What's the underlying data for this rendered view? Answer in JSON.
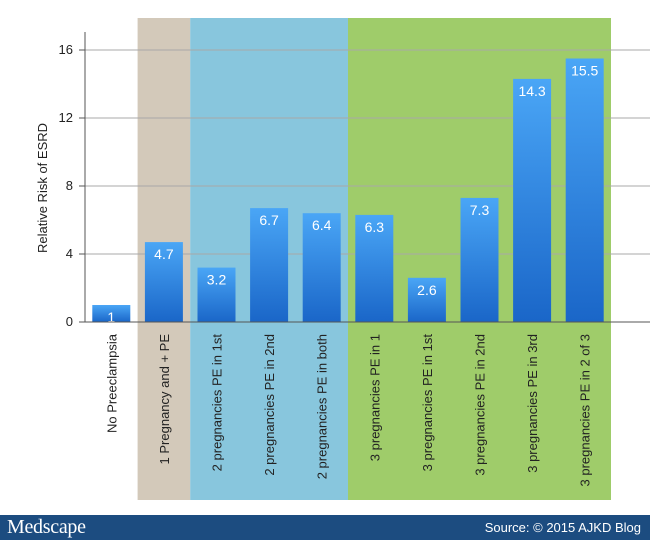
{
  "chart_data": {
    "type": "bar",
    "ylabel": "Relative Risk of ESRD",
    "ylim": [
      0,
      17
    ],
    "yticks": [
      0,
      4,
      8,
      12,
      16
    ],
    "grid": true,
    "categories": [
      "No Preeclampsia",
      "1 Pregnancy and + PE",
      "2 pregnancies PE in 1st",
      "2 pregnancies PE in 2nd",
      "2 pregnancies PE in both",
      "3 pregnancies PE in 1",
      "3 pregnancies PE in 1st",
      "3 pregnancies PE in 2nd",
      "3 pregnancies PE in 3rd",
      "3 pregnancies PE in 2 of 3"
    ],
    "values": [
      1,
      4.7,
      3.2,
      6.7,
      6.4,
      6.3,
      2.6,
      7.3,
      14.3,
      15.5
    ],
    "data_labels": [
      "1",
      "4.7",
      "3.2",
      "6.7",
      "6.4",
      "6.3",
      "2.6",
      "7.3",
      "14.3",
      "15.5"
    ],
    "bands": [
      {
        "from_index": 1,
        "to_index": 1,
        "color": "#d3c9ba"
      },
      {
        "from_index": 2,
        "to_index": 4,
        "color": "#88c6dd"
      },
      {
        "from_index": 5,
        "to_index": 9,
        "color": "#9fcc6a"
      }
    ],
    "bar_color_top": "#4aa6f6",
    "bar_color_bottom": "#1a66c8"
  },
  "footer": {
    "logo_text": "Medscape",
    "source_text": "Source: © 2015 AJKD Blog"
  }
}
